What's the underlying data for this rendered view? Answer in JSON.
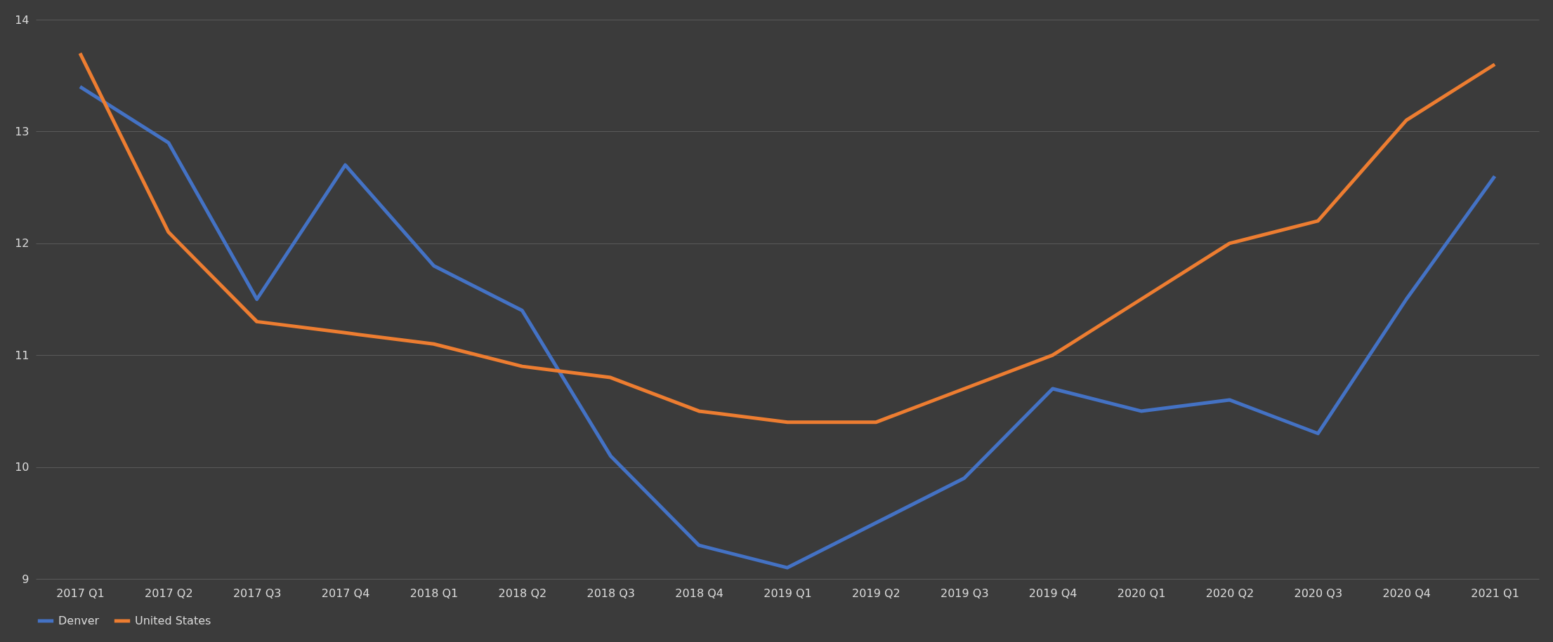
{
  "chart_data": {
    "type": "line",
    "categories": [
      "2017 Q1",
      "2017 Q2",
      "2017 Q3",
      "2017 Q4",
      "2018 Q1",
      "2018 Q2",
      "2018 Q3",
      "2018 Q4",
      "2019 Q1",
      "2019 Q2",
      "2019 Q3",
      "2019 Q4",
      "2020 Q1",
      "2020 Q2",
      "2020 Q3",
      "2020 Q4",
      "2021 Q1"
    ],
    "series": [
      {
        "name": "Denver",
        "color": "#4472c4",
        "values": [
          13.4,
          12.9,
          11.5,
          12.7,
          11.8,
          11.4,
          10.1,
          9.3,
          9.1,
          9.5,
          9.9,
          10.7,
          10.5,
          10.6,
          10.3,
          11.5,
          12.6
        ]
      },
      {
        "name": "United States",
        "color": "#ed7d31",
        "values": [
          13.7,
          12.1,
          11.3,
          11.2,
          11.1,
          10.9,
          10.8,
          10.5,
          10.4,
          10.4,
          10.7,
          11.0,
          11.5,
          12.0,
          12.2,
          13.1,
          13.6
        ]
      }
    ],
    "ylim": [
      9,
      14
    ],
    "yticks": [
      9,
      10,
      11,
      12,
      13,
      14
    ],
    "grid": "y",
    "legend": "bottom",
    "marker": "none",
    "line_style": "solid"
  }
}
